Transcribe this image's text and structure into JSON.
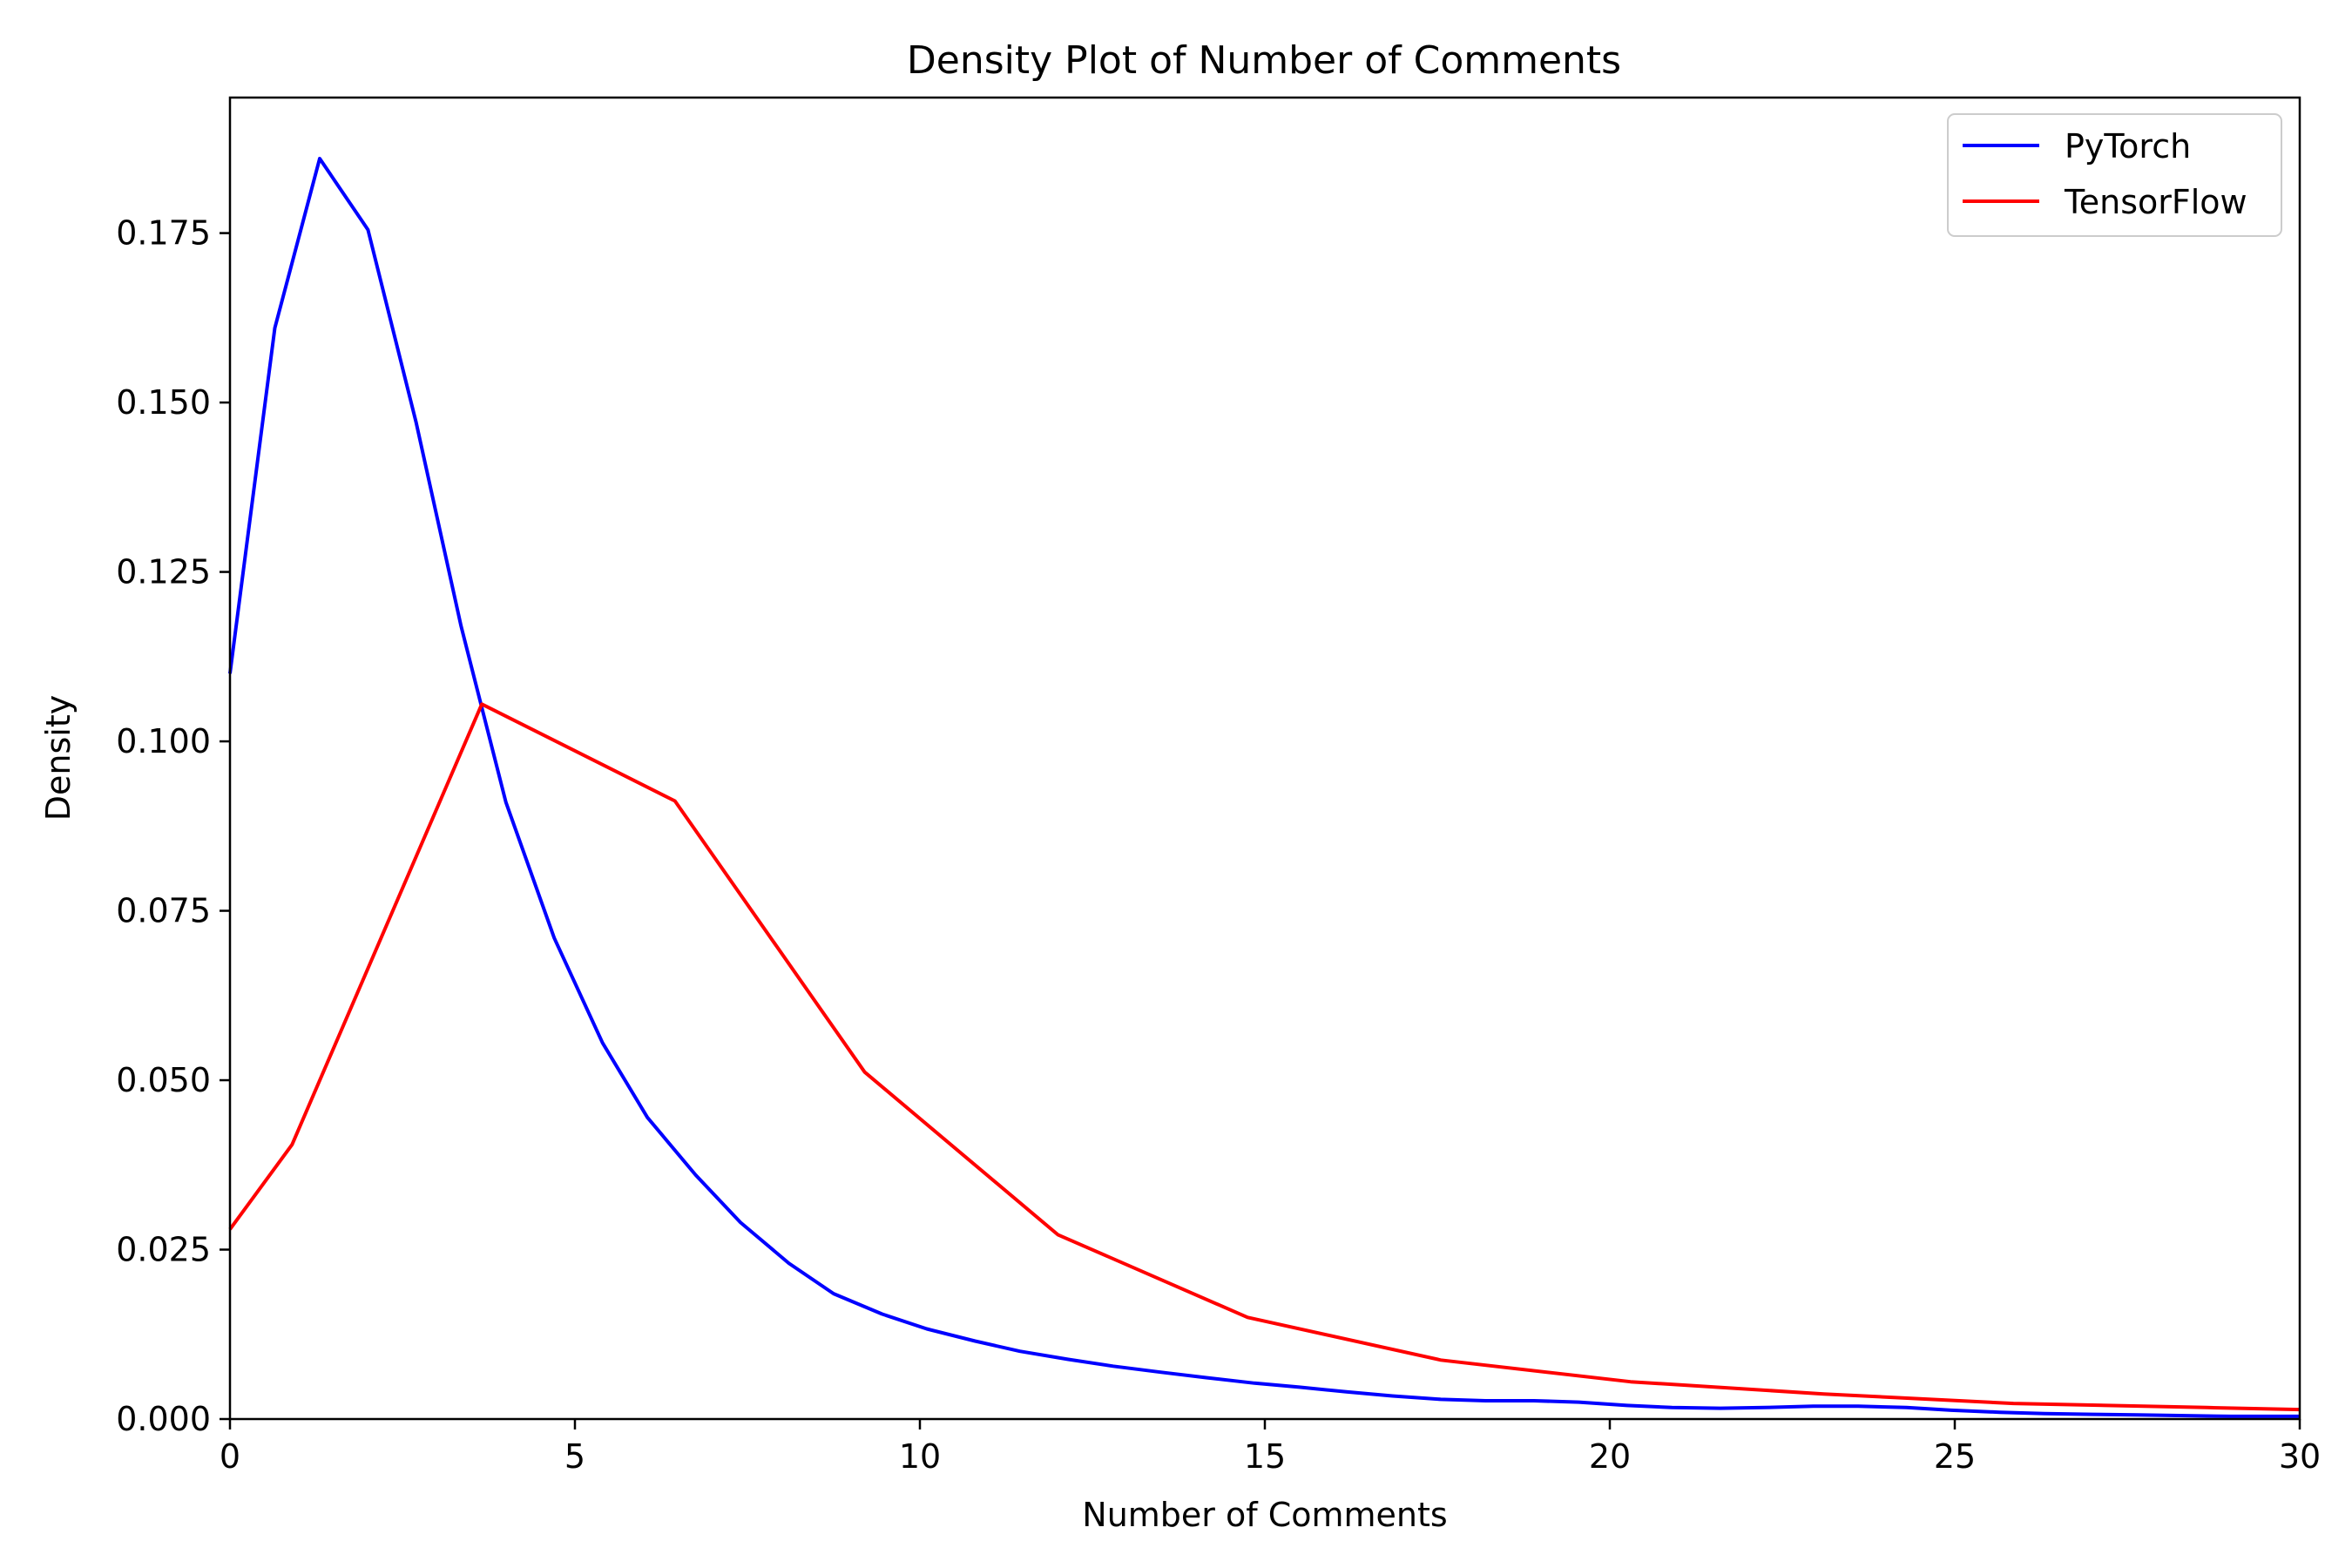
{
  "chart_data": {
    "type": "line",
    "title": "Density Plot of Number of Comments",
    "xlabel": "Number of Comments",
    "ylabel": "Density",
    "xlim": [
      0,
      30
    ],
    "ylim": [
      0,
      0.195
    ],
    "xticks": [
      0,
      5,
      10,
      15,
      20,
      25,
      30
    ],
    "xtick_labels": [
      "0",
      "5",
      "10",
      "15",
      "20",
      "25",
      "30"
    ],
    "yticks": [
      0.0,
      0.025,
      0.05,
      0.075,
      0.1,
      0.125,
      0.15,
      0.175
    ],
    "ytick_labels": [
      "0.000",
      "0.025",
      "0.050",
      "0.075",
      "0.100",
      "0.125",
      "0.150",
      "0.175"
    ],
    "grid": false,
    "legend_position": "top-right",
    "series": [
      {
        "name": "PyTorch",
        "color": "#0000ff",
        "x": [
          0,
          0.65,
          1.3,
          2.0,
          2.7,
          3.35,
          4.0,
          4.7,
          5.4,
          6.05,
          6.75,
          7.4,
          8.1,
          8.75,
          9.45,
          10.1,
          10.8,
          11.45,
          12.15,
          12.8,
          13.5,
          14.15,
          14.85,
          15.5,
          16.2,
          16.85,
          17.55,
          18.2,
          18.9,
          19.55,
          20.25,
          20.9,
          21.6,
          22.25,
          22.95,
          23.6,
          24.3,
          24.95,
          25.65,
          26.3,
          27.0,
          27.65,
          28.35,
          29.0,
          30.0
        ],
        "y": [
          0.11,
          0.161,
          0.186,
          0.1755,
          0.147,
          0.117,
          0.091,
          0.071,
          0.0555,
          0.0445,
          0.036,
          0.029,
          0.023,
          0.0185,
          0.0155,
          0.0133,
          0.0115,
          0.01,
          0.0088,
          0.0078,
          0.0069,
          0.0061,
          0.0053,
          0.0047,
          0.004,
          0.0034,
          0.0029,
          0.0027,
          0.0027,
          0.0025,
          0.002,
          0.0017,
          0.0016,
          0.0017,
          0.0019,
          0.0019,
          0.0017,
          0.0013,
          0.001,
          0.0008,
          0.0007,
          0.0006,
          0.0005,
          0.0004,
          0.0004
        ]
      },
      {
        "name": "TensorFlow",
        "color": "#ff0000",
        "x": [
          0,
          0.9,
          3.65,
          6.45,
          9.2,
          12.0,
          14.75,
          17.55,
          20.3,
          23.1,
          25.85,
          28.65,
          30.0
        ],
        "y": [
          0.028,
          0.0405,
          0.1055,
          0.0912,
          0.0512,
          0.0272,
          0.015,
          0.0087,
          0.0055,
          0.0037,
          0.0023,
          0.0017,
          0.0014
        ]
      }
    ]
  }
}
